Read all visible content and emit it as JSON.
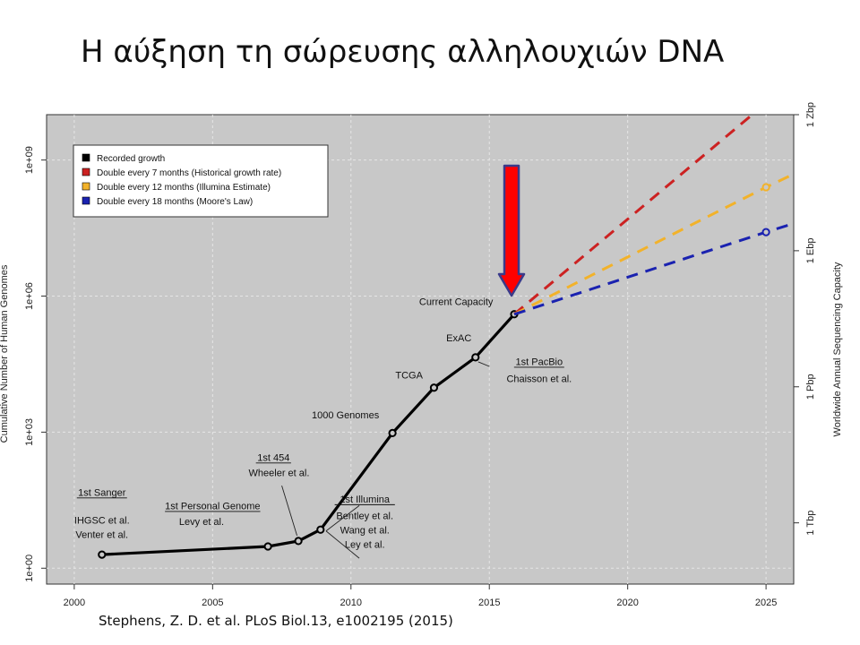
{
  "slide": {
    "title": "Η αύξηση τη σώρευσης αλληλουχιών DNA",
    "citation": "Stephens, Z. D. et al. PLoS Biol.13, e1002195 (2015)"
  },
  "chart_data": {
    "type": "line",
    "ylabel": "Cumulative Number of Human Genomes",
    "ylabel_right": "Worldwide Annual Sequencing Capacity",
    "y_scale": "log10",
    "xlim": [
      1999.0,
      2026.0
    ],
    "ylim_log10": [
      -0.35,
      10.0
    ],
    "x_ticks": [
      {
        "value": 2000,
        "label": "2000"
      },
      {
        "value": 2005,
        "label": "2005"
      },
      {
        "value": 2010,
        "label": "2010"
      },
      {
        "value": 2015,
        "label": "2015"
      },
      {
        "value": 2020,
        "label": "2020"
      },
      {
        "value": 2025,
        "label": "2025"
      }
    ],
    "y_ticks": [
      {
        "log10": 0,
        "label": "1e+00"
      },
      {
        "log10": 3,
        "label": "1e+03"
      },
      {
        "log10": 6,
        "label": "1e+06"
      },
      {
        "log10": 9,
        "label": "1e+09"
      }
    ],
    "y_right_ticks": [
      {
        "log10": 1.0,
        "label": "1 Tbp"
      },
      {
        "log10": 4.0,
        "label": "1 Pbp"
      },
      {
        "log10": 7.0,
        "label": "1 Ebp"
      },
      {
        "log10": 10.0,
        "label": "1 Zbp"
      }
    ],
    "grid": true,
    "legend_position": "top-left",
    "legend": [
      {
        "label": "Recorded growth",
        "color": "#000000"
      },
      {
        "label": "Double every 7 months (Historical growth rate)",
        "color": "#cc2222"
      },
      {
        "label": "Double every 12 months (Illumina Estimate)",
        "color": "#f2b22a"
      },
      {
        "label": "Double every 18 months (Moore's Law)",
        "color": "#1a22b0"
      }
    ],
    "series": [
      {
        "name": "Recorded growth",
        "color": "#000000",
        "style": "solid",
        "points": [
          {
            "x": 2001.0,
            "log10": 0.3
          },
          {
            "x": 2007.0,
            "log10": 0.48
          },
          {
            "x": 2008.1,
            "log10": 0.6
          },
          {
            "x": 2008.9,
            "log10": 0.85
          },
          {
            "x": 2011.5,
            "log10": 2.98
          },
          {
            "x": 2013.0,
            "log10": 3.98
          },
          {
            "x": 2014.5,
            "log10": 4.65
          },
          {
            "x": 2015.9,
            "log10": 5.6
          }
        ]
      },
      {
        "name": "Double every 7 months (Historical growth rate)",
        "color": "#cc2222",
        "style": "dashed",
        "points": [
          {
            "x": 2015.9,
            "log10": 5.6
          },
          {
            "x": 2024.7,
            "log10": 10.1
          }
        ]
      },
      {
        "name": "Double every 12 months (Illumina Estimate)",
        "color": "#f2b22a",
        "style": "dashed",
        "points": [
          {
            "x": 2015.9,
            "log10": 5.6
          },
          {
            "x": 2025.0,
            "log10": 8.4
          },
          {
            "x": 2026.0,
            "log10": 8.69
          }
        ],
        "markers": [
          {
            "x": 2025.0,
            "log10": 8.4
          }
        ]
      },
      {
        "name": "Double every 18 months (Moore's Law)",
        "color": "#1a22b0",
        "style": "dashed",
        "points": [
          {
            "x": 2015.9,
            "log10": 5.6
          },
          {
            "x": 2025.0,
            "log10": 7.41
          },
          {
            "x": 2026.0,
            "log10": 7.6
          }
        ],
        "markers": [
          {
            "x": 2025.0,
            "log10": 7.41
          }
        ]
      }
    ],
    "annotations": [
      {
        "lines": [
          "1st Sanger"
        ],
        "underline": true,
        "x": 2001.0,
        "log10": 1.6
      },
      {
        "lines": [
          "IHGSC et al.",
          "Venter et al."
        ],
        "underline": false,
        "x": 2001.0,
        "log10": 0.98
      },
      {
        "lines": [
          "1st Personal Genome"
        ],
        "underline": true,
        "x": 2005.0,
        "log10": 1.3
      },
      {
        "lines": [
          "Levy et al."
        ],
        "underline": false,
        "x": 2004.6,
        "log10": 0.95
      },
      {
        "lines": [
          "1st 454"
        ],
        "underline": true,
        "x": 2007.2,
        "log10": 2.37
      },
      {
        "lines": [
          "Wheeler et al."
        ],
        "underline": false,
        "x": 2007.4,
        "log10": 2.03
      },
      {
        "lines": [
          "1st Illumina"
        ],
        "underline": true,
        "x": 2010.5,
        "log10": 1.45
      },
      {
        "lines": [
          "Bentley et al.",
          "Wang et al.",
          "Ley et al."
        ],
        "underline": false,
        "x": 2010.5,
        "log10": 1.08
      },
      {
        "lines": [
          "1000 Genomes"
        ],
        "underline": false,
        "x": 2009.8,
        "log10": 3.3
      },
      {
        "lines": [
          "TCGA"
        ],
        "underline": false,
        "x": 2012.1,
        "log10": 4.18
      },
      {
        "lines": [
          "ExAC"
        ],
        "underline": false,
        "x": 2013.9,
        "log10": 5.0
      },
      {
        "lines": [
          "Current Capacity"
        ],
        "underline": false,
        "x": 2013.8,
        "log10": 5.8
      },
      {
        "lines": [
          "1st PacBio"
        ],
        "underline": true,
        "x": 2016.8,
        "log10": 4.48
      },
      {
        "lines": [
          "Chaisson et al."
        ],
        "underline": false,
        "x": 2016.8,
        "log10": 4.1
      }
    ],
    "arrow": {
      "color": "#ff0000",
      "outline": "#3a3a8a",
      "x": 2015.9
    }
  }
}
